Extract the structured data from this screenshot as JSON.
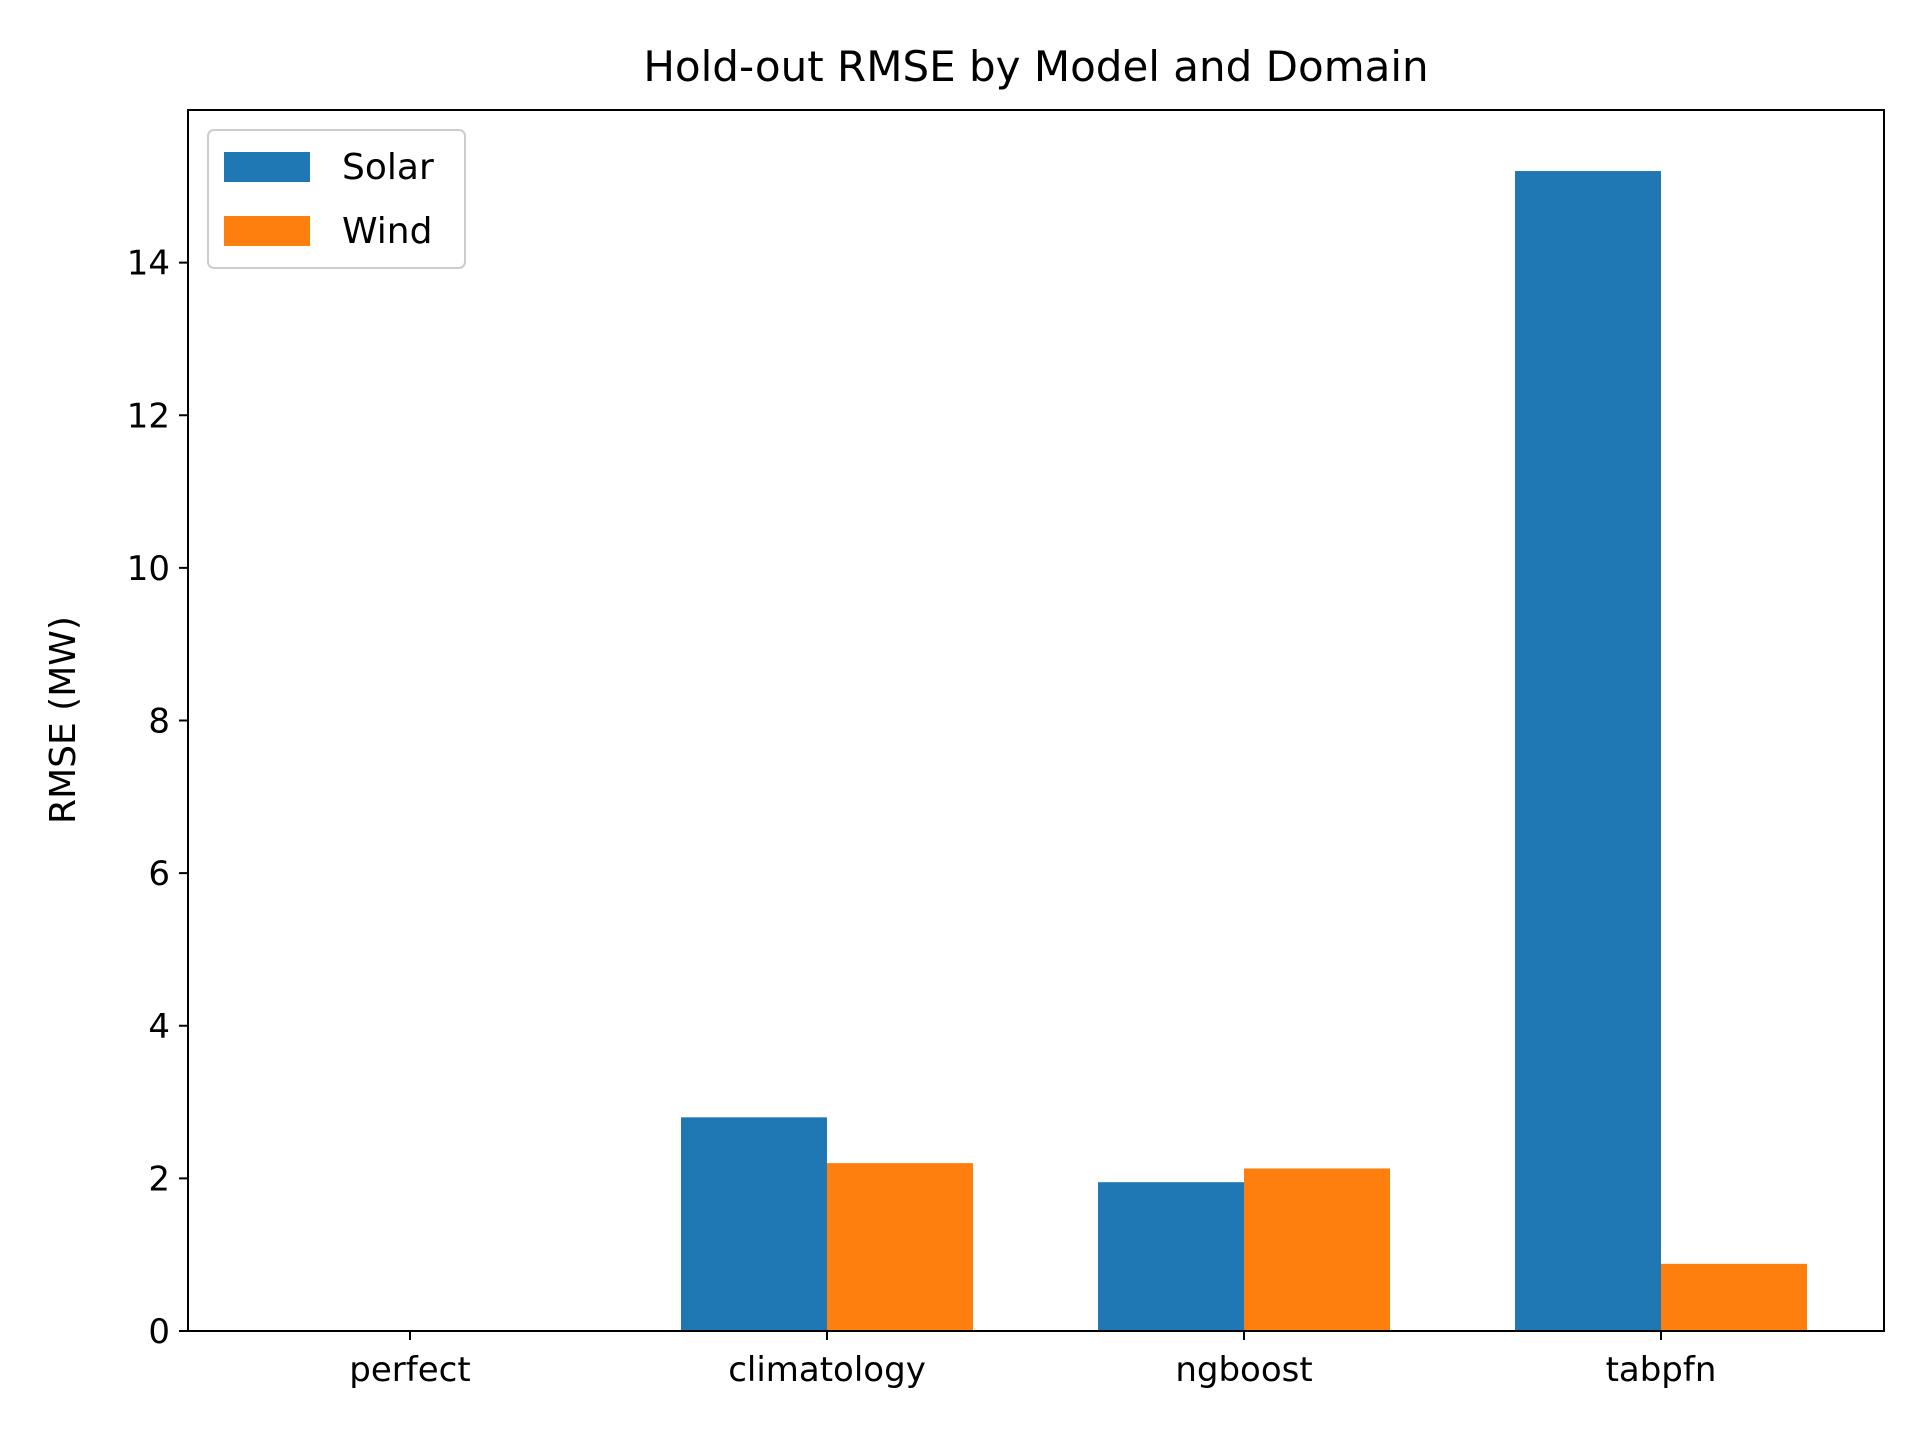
{
  "chart_data": {
    "type": "bar",
    "title": "Hold-out RMSE by Model and Domain",
    "xlabel": "",
    "ylabel": "RMSE (MW)",
    "categories": [
      "perfect",
      "climatology",
      "ngboost",
      "tabpfn"
    ],
    "series": [
      {
        "name": "Solar",
        "color": "#1f77b4",
        "values": [
          0,
          2.8,
          1.95,
          15.2
        ]
      },
      {
        "name": "Wind",
        "color": "#ff7f0e",
        "values": [
          0,
          2.2,
          2.13,
          0.88
        ]
      }
    ],
    "ylim": [
      0,
      16
    ],
    "yticks": [
      0,
      2,
      4,
      6,
      8,
      10,
      12,
      14
    ],
    "grid": false,
    "legend_position": "top-left"
  }
}
